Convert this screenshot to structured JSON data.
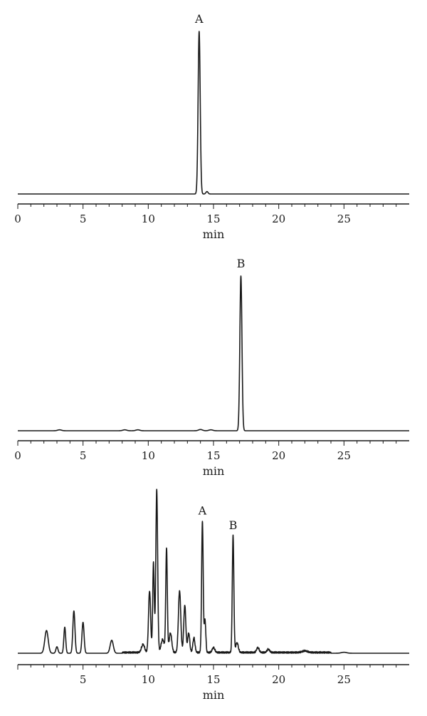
{
  "chart_data": [
    {
      "type": "line",
      "xlabel": "min",
      "xlim": [
        0,
        30
      ],
      "x_ticks": [
        "0",
        "5",
        "10",
        "15",
        "20",
        "25"
      ],
      "minor_tick_step": 1,
      "series": [
        {
          "peaks": [
            {
              "x": 13.9,
              "height": 1.0,
              "width": 0.08
            },
            {
              "x": 14.5,
              "height": 0.015,
              "width": 0.08
            }
          ]
        }
      ],
      "annotations": [
        {
          "text": "A",
          "x": 13.9
        }
      ]
    },
    {
      "type": "line",
      "xlabel": "min",
      "xlim": [
        0,
        30
      ],
      "x_ticks": [
        "0",
        "5",
        "10",
        "15",
        "20",
        "25"
      ],
      "minor_tick_step": 1,
      "series": [
        {
          "peaks": [
            {
              "x": 17.1,
              "height": 1.0,
              "width": 0.08
            },
            {
              "x": 3.2,
              "height": 0.006,
              "width": 0.15
            },
            {
              "x": 8.2,
              "height": 0.006,
              "width": 0.15
            },
            {
              "x": 9.2,
              "height": 0.006,
              "width": 0.15
            },
            {
              "x": 14.0,
              "height": 0.008,
              "width": 0.15
            },
            {
              "x": 14.8,
              "height": 0.006,
              "width": 0.15
            }
          ]
        }
      ],
      "annotations": [
        {
          "text": "B",
          "x": 17.1
        }
      ]
    },
    {
      "type": "line",
      "xlabel": "min",
      "xlim": [
        0,
        30
      ],
      "x_ticks": [
        "",
        "5",
        "10",
        "15",
        "20",
        "25"
      ],
      "minor_tick_step": 1,
      "series": [
        {
          "peaks": [
            {
              "x": 2.2,
              "height": 0.14,
              "width": 0.13
            },
            {
              "x": 3.0,
              "height": 0.04,
              "width": 0.08
            },
            {
              "x": 3.6,
              "height": 0.16,
              "width": 0.07
            },
            {
              "x": 4.3,
              "height": 0.26,
              "width": 0.08
            },
            {
              "x": 5.0,
              "height": 0.19,
              "width": 0.08
            },
            {
              "x": 7.2,
              "height": 0.08,
              "width": 0.12
            },
            {
              "x": 9.6,
              "height": 0.05,
              "width": 0.12
            },
            {
              "x": 10.1,
              "height": 0.38,
              "width": 0.08
            },
            {
              "x": 10.4,
              "height": 0.55,
              "width": 0.06
            },
            {
              "x": 10.65,
              "height": 1.0,
              "width": 0.07
            },
            {
              "x": 11.1,
              "height": 0.08,
              "width": 0.12
            },
            {
              "x": 11.4,
              "height": 0.64,
              "width": 0.06
            },
            {
              "x": 11.7,
              "height": 0.12,
              "width": 0.1
            },
            {
              "x": 12.4,
              "height": 0.38,
              "width": 0.09
            },
            {
              "x": 12.8,
              "height": 0.29,
              "width": 0.08
            },
            {
              "x": 13.1,
              "height": 0.12,
              "width": 0.08
            },
            {
              "x": 13.5,
              "height": 0.09,
              "width": 0.08
            },
            {
              "x": 14.15,
              "height": 0.81,
              "width": 0.06
            },
            {
              "x": 14.35,
              "height": 0.2,
              "width": 0.06
            },
            {
              "x": 15.0,
              "height": 0.03,
              "width": 0.1
            },
            {
              "x": 16.5,
              "height": 0.72,
              "width": 0.06
            },
            {
              "x": 16.8,
              "height": 0.06,
              "width": 0.1
            },
            {
              "x": 18.4,
              "height": 0.03,
              "width": 0.1
            },
            {
              "x": 19.2,
              "height": 0.02,
              "width": 0.1
            },
            {
              "x": 22.0,
              "height": 0.01,
              "width": 0.2
            },
            {
              "x": 25.0,
              "height": 0.006,
              "width": 0.2
            }
          ]
        }
      ],
      "annotations": [
        {
          "text": "A",
          "x": 14.15
        },
        {
          "text": "B",
          "x": 16.5
        }
      ]
    }
  ]
}
